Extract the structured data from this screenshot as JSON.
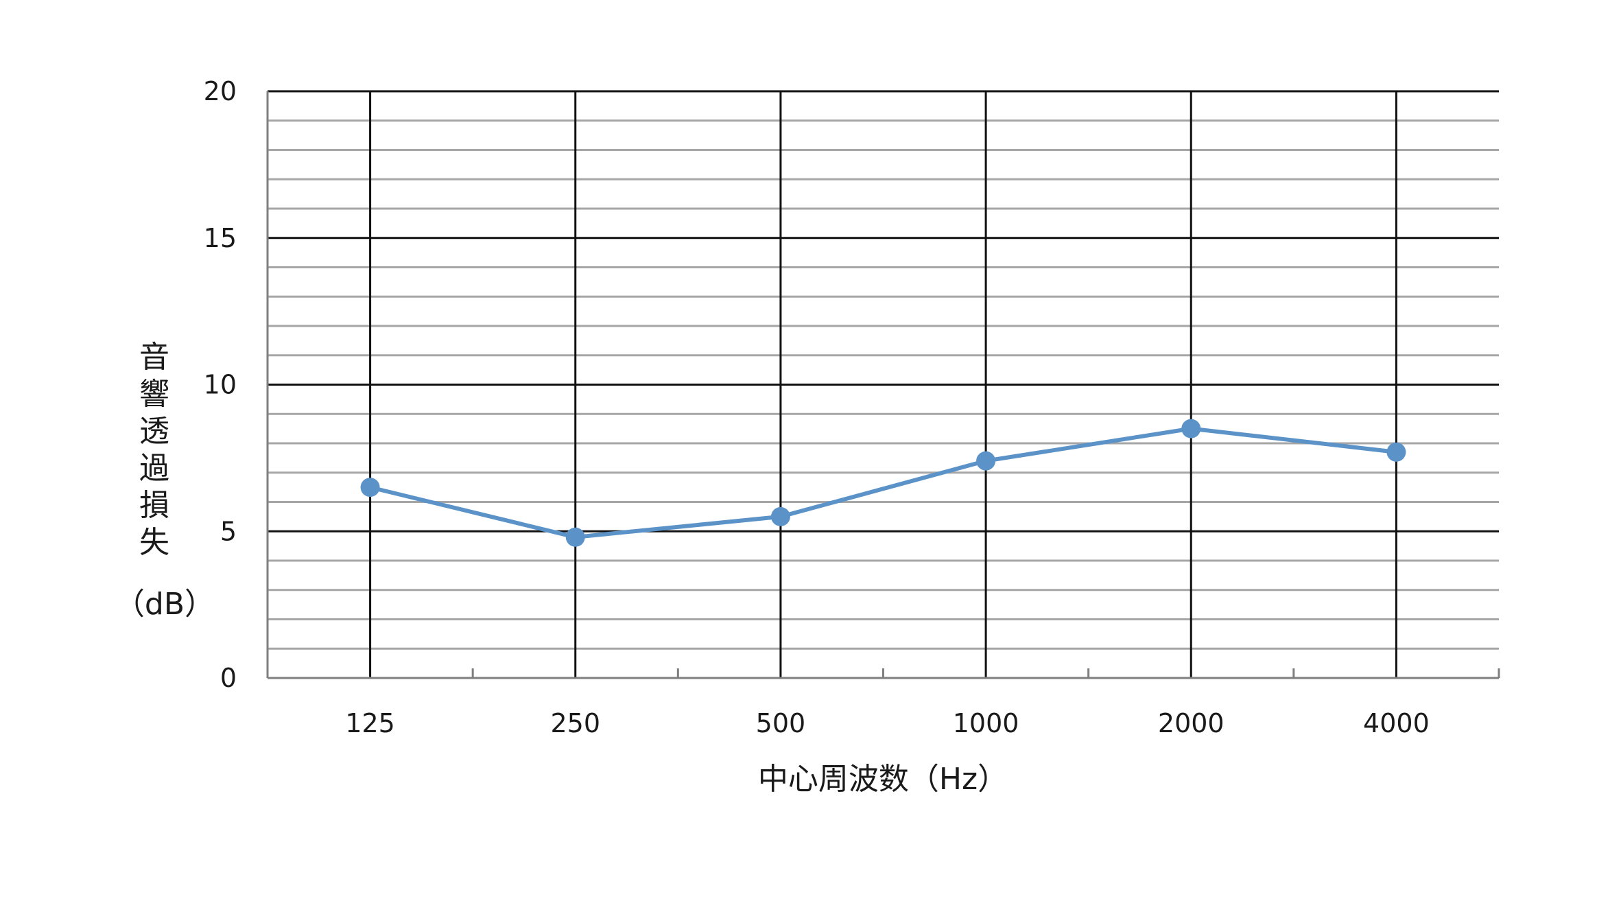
{
  "chart_data": {
    "type": "line",
    "title": "",
    "xlabel": "中心周波数（Hz）",
    "ylabel_chars": [
      "音",
      "響",
      "透",
      "過",
      "損",
      "失"
    ],
    "ylabel_unit": "（dB）",
    "categories": [
      "125",
      "250",
      "500",
      "1000",
      "2000",
      "4000"
    ],
    "series": [
      {
        "values": [
          6.5,
          4.8,
          5.5,
          7.4,
          8.5,
          7.7
        ]
      }
    ],
    "ylim": [
      0,
      20
    ],
    "y_major_ticks": [
      0,
      5,
      10,
      15,
      20
    ],
    "y_minor_step": 1,
    "grid": true,
    "legend": "none",
    "colors": {
      "line": "#5b93c9",
      "major_grid": "#111111",
      "minor_grid": "#a6a6a6",
      "axis": "#7f7f7f"
    }
  }
}
